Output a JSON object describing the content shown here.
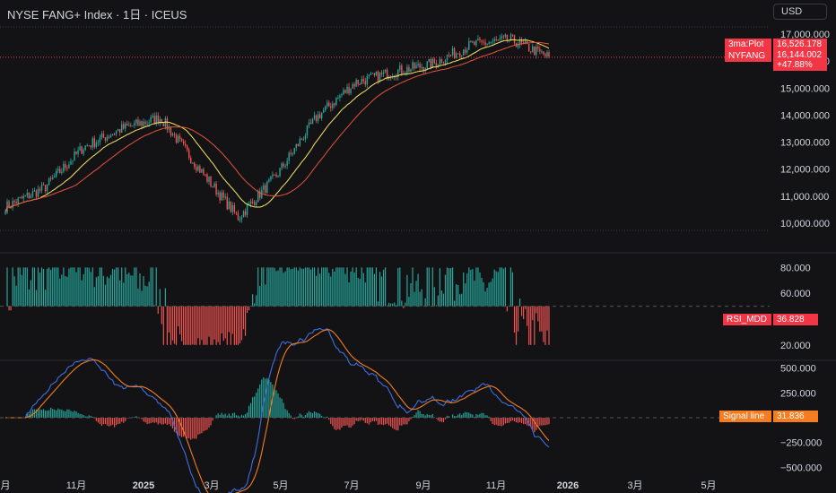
{
  "header": {
    "title": "NYSE FANG+ Index · 1日 · ICEUS",
    "currency": "USD"
  },
  "colors": {
    "up": "#26a69a",
    "down": "#ef5350",
    "ma_fast": "#f5e663",
    "ma_slow": "#e5533b",
    "macd": "#3d6ee0",
    "signal": "#f57c20",
    "badge_red": "#f23645",
    "badge_orange": "#f57c20"
  },
  "badges": {
    "ma_label": "3ma:Plot",
    "ma_value": "16,526.178",
    "symbol_label": "NYFANG",
    "symbol_value": "16,144.002",
    "symbol_change": "+47.88%",
    "rsi_label": "RSI_MDD",
    "rsi_value": "36.828",
    "signal_label": "Signal line",
    "signal_value": "31.836"
  },
  "chart_data": [
    {
      "type": "line",
      "pane": "price",
      "series": [
        {
          "name": "NYFANG",
          "x": [
            "2024-10",
            "2024-11",
            "2024-12",
            "2025-01",
            "2025-02",
            "2025-03",
            "2025-04",
            "2025-05",
            "2025-06",
            "2025-07",
            "2025-08",
            "2025-09",
            "2025-10",
            "2025-11",
            "2025-12"
          ],
          "values": [
            10600,
            11300,
            12800,
            13500,
            13900,
            12000,
            10200,
            11800,
            13900,
            15200,
            15600,
            15900,
            16600,
            16800,
            16144
          ]
        }
      ],
      "y_ticks": [
        "10,000.000",
        "11,000.000",
        "12,000.000",
        "13,000.000",
        "14,000.000",
        "15,000.000",
        "16,000.000",
        "17,000.000"
      ],
      "ylim": [
        9700,
        17400
      ]
    },
    {
      "type": "bar",
      "pane": "rsi",
      "y_ticks": [
        "20.000",
        "60.000",
        "80.000"
      ],
      "ylim": [
        15,
        90
      ],
      "baseline": 50
    },
    {
      "type": "line",
      "pane": "macd",
      "series": [
        {
          "name": "Signal line"
        }
      ],
      "y_ticks": [
        "500.000",
        "250.000",
        "−250.000",
        "−500.000"
      ],
      "ylim": [
        -560,
        560
      ]
    }
  ],
  "x_axis": {
    "ticks": [
      "月",
      "11月",
      "2025",
      "3月",
      "5月",
      "7月",
      "9月",
      "11月",
      "2026",
      "3月",
      "5月"
    ],
    "bold": [
      "2025",
      "2026"
    ]
  }
}
